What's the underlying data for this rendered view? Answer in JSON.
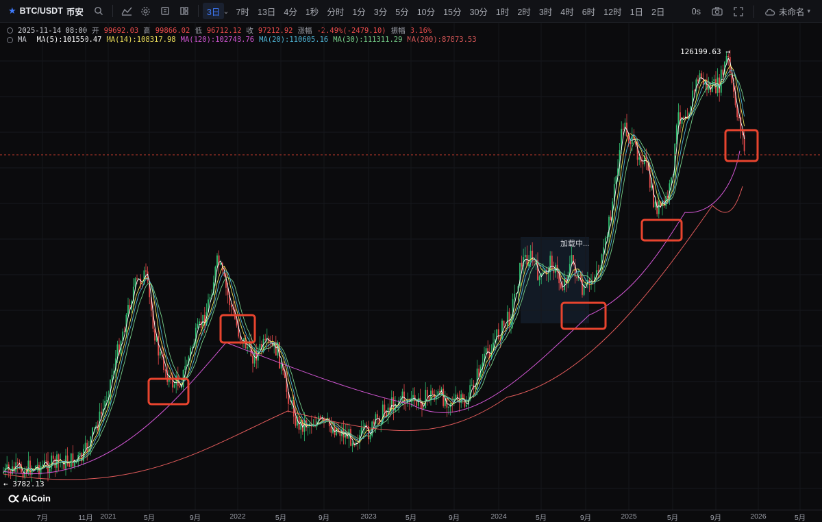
{
  "toolbar": {
    "symbol": "BTC/USDT",
    "exchange": "币安",
    "intervals": [
      "3日",
      "7时",
      "13日",
      "4分",
      "1秒",
      "分时",
      "1分",
      "3分",
      "5分",
      "10分",
      "15分",
      "30分",
      "1时",
      "2时",
      "3时",
      "4时",
      "6时",
      "12时",
      "1日",
      "2日"
    ],
    "active_interval": "3日",
    "right_time": "0s",
    "layout_name": "未命名"
  },
  "ohlc": {
    "datetime": "2025-11-14 08:00",
    "open_label": "开",
    "open": "99692.03",
    "high_label": "高",
    "high": "99866.02",
    "low_label": "低",
    "low": "96712.12",
    "close_label": "收",
    "close": "97212.92",
    "change_label": "涨幅",
    "change": "-2.49%(-2479.10)",
    "amplitude_label": "振幅",
    "amplitude": "3.16%"
  },
  "ma": {
    "label": "MA",
    "items": [
      {
        "text": "MA(5):101550.47",
        "color": "#ffffff"
      },
      {
        "text": "MA(14):108317.98",
        "color": "#f1e35b"
      },
      {
        "text": "MA(120):102748.76",
        "color": "#d457d6"
      },
      {
        "text": "MA(20):110605.16",
        "color": "#4fb7d8"
      },
      {
        "text": "MA(30):111311.29",
        "color": "#77d18a"
      },
      {
        "text": "MA(200):87873.53",
        "color": "#e05a5a"
      }
    ]
  },
  "chart": {
    "high_marker": "126199.63",
    "low_marker": "3782.13",
    "loading_text": "加载中...",
    "x_labels": [
      "7月",
      "11月",
      "2021",
      "5月",
      "9月",
      "2022",
      "5月",
      "9月",
      "2023",
      "5月",
      "9月",
      "2024",
      "5月",
      "9月",
      "2025",
      "5月",
      "9月",
      "2026",
      "5月"
    ],
    "colors": {
      "up": "#2fbf71",
      "down": "#e84b4b",
      "highlight": "#e8442e",
      "last_price_line": "#c0392b"
    }
  },
  "brand": "AiCoin"
}
